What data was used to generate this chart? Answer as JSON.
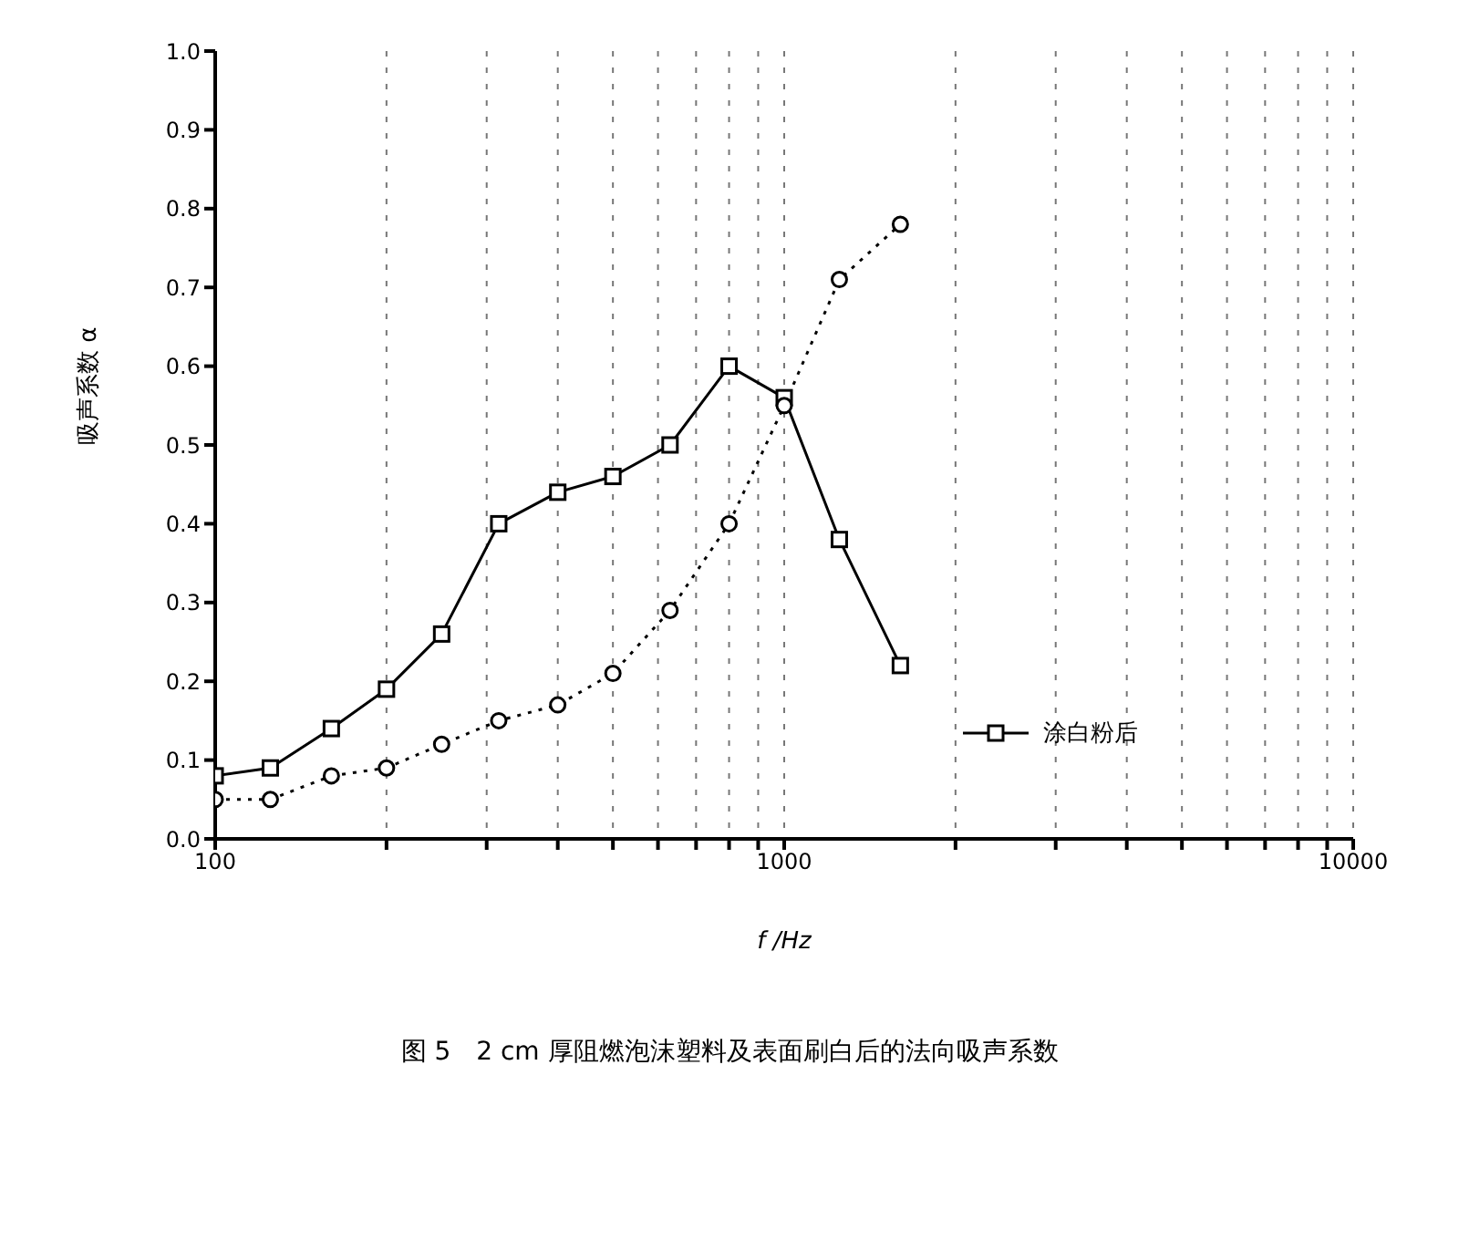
{
  "chart_data": {
    "type": "line",
    "xlabel": "f /Hz",
    "ylabel": "吸声系数 α",
    "annotations": [
      "图 5　2 cm 厚阻燃泡沫塑料及表面刷白后的法向吸声系数"
    ],
    "x": [
      100,
      125,
      160,
      200,
      250,
      315,
      400,
      500,
      630,
      800,
      1000,
      1250,
      1600
    ],
    "series": [
      {
        "name": "涂白粉后",
        "color": "#000000",
        "marker": "square",
        "line_style": "solid",
        "values": [
          0.08,
          0.09,
          0.14,
          0.19,
          0.26,
          0.4,
          0.44,
          0.46,
          0.5,
          0.6,
          0.56,
          0.38,
          0.22
        ]
      },
      {
        "color": "#000000",
        "marker": "circle",
        "line_style": "dotted",
        "values": [
          0.05,
          0.05,
          0.08,
          0.09,
          0.12,
          0.15,
          0.17,
          0.21,
          0.29,
          0.4,
          0.55,
          0.71,
          0.78
        ]
      }
    ],
    "log": "x",
    "xlim": [
      100,
      10000
    ],
    "xticks": [
      100,
      {
        "value": 200,
        "label": null
      },
      {
        "value": 300,
        "label": null
      },
      {
        "value": 400,
        "label": null
      },
      {
        "value": 500,
        "label": null
      },
      {
        "value": 600,
        "label": null
      },
      {
        "value": 700,
        "label": null
      },
      {
        "value": 800,
        "label": null
      },
      {
        "value": 900,
        "label": null
      },
      1000,
      {
        "value": 2000,
        "label": null
      },
      {
        "value": 3000,
        "label": null
      },
      {
        "value": 4000,
        "label": null
      },
      {
        "value": 5000,
        "label": null
      },
      {
        "value": 6000,
        "label": null
      },
      {
        "value": 7000,
        "label": null
      },
      {
        "value": 8000,
        "label": null
      },
      {
        "value": 9000,
        "label": null
      },
      10000
    ],
    "ylim": [
      0,
      1
    ],
    "yticks": [
      {
        "value": 0,
        "label": "0.0"
      },
      0.1,
      0.2,
      0.3,
      0.4,
      0.5,
      0.6,
      0.7,
      0.8,
      0.9,
      {
        "value": 1,
        "label": "1.0"
      }
    ],
    "grid": "x",
    "legend": "bottom right"
  }
}
